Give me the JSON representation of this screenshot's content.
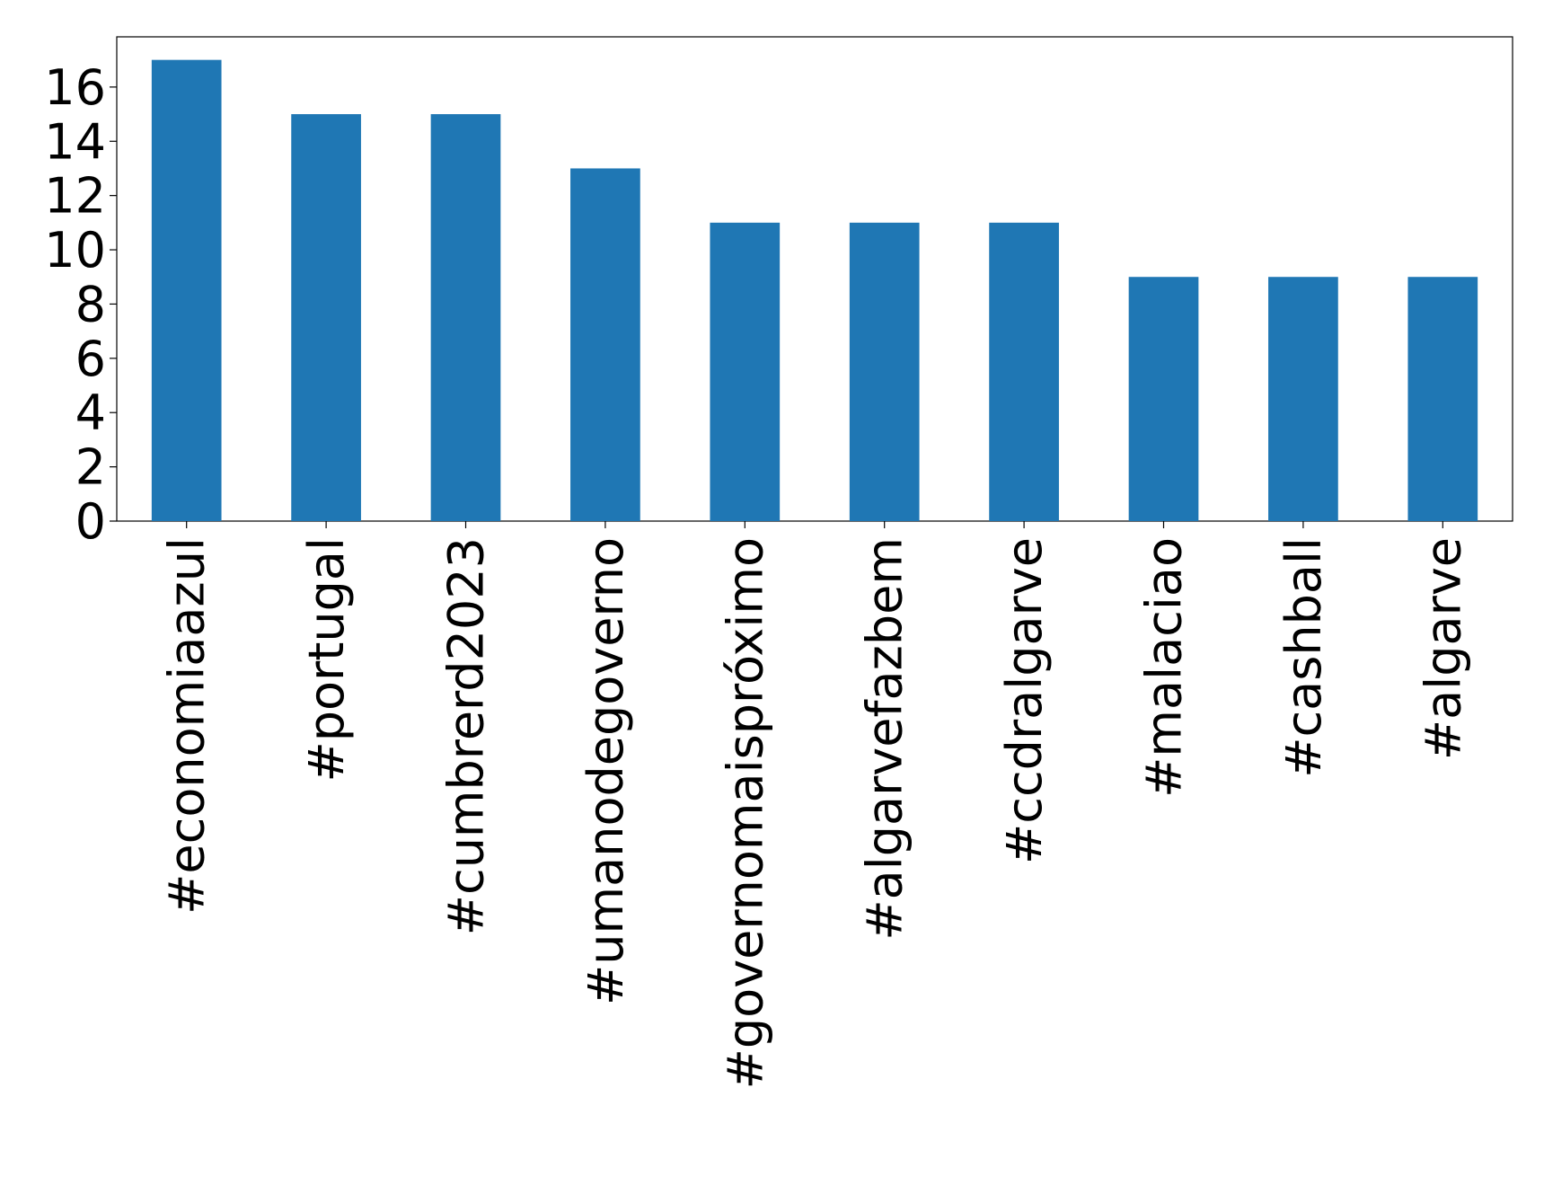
{
  "chart_data": {
    "type": "bar",
    "categories": [
      "#economiaazul",
      "#portugal",
      "#cumbrerd2023",
      "#umanodegoverno",
      "#governomaispróximo",
      "#algarvefazbem",
      "#ccdralgarve",
      "#malaciao",
      "#cashball",
      "#algarve"
    ],
    "values": [
      17,
      15,
      15,
      13,
      11,
      11,
      11,
      9,
      9,
      9
    ],
    "color": "#1f77b4",
    "ylim": [
      0,
      17.85
    ],
    "yticks": [
      0,
      2,
      4,
      6,
      8,
      10,
      12,
      14,
      16
    ],
    "grid": false
  }
}
